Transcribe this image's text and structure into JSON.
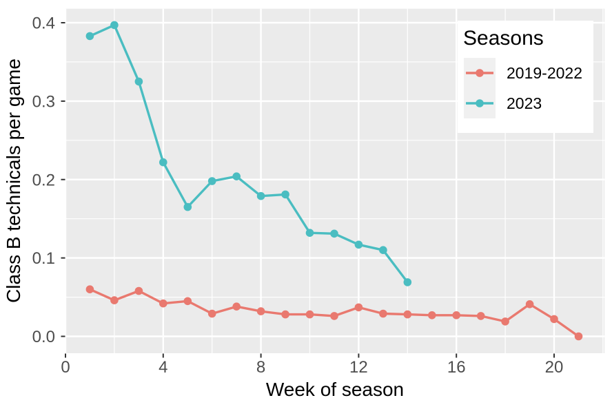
{
  "figure": {
    "background": "#FFFFFF",
    "panel_background": "#EBEBEB",
    "grid_color": "#FFFFFF",
    "tick_mark_color": "#333333",
    "tick_label_color": "#4D4D4D",
    "axis_title_color": "#000000",
    "legend_key_background": "#F0F0F0"
  },
  "chart_data": {
    "type": "line",
    "title": "",
    "xlabel": "Week of season",
    "ylabel": "Class B technicals per game",
    "legend_title": "Seasons",
    "legend_position": "top-right",
    "grid": true,
    "xlim": [
      0,
      22.1
    ],
    "ylim": [
      -0.021,
      0.418
    ],
    "x_ticks": [
      0,
      4,
      8,
      12,
      16,
      20
    ],
    "x_minor_ticks": [
      2,
      6,
      10,
      14,
      18,
      22
    ],
    "y_ticks": [
      "0.0",
      "0.1",
      "0.2",
      "0.3",
      "0.4"
    ],
    "y_tick_values": [
      0.0,
      0.1,
      0.2,
      0.3,
      0.4
    ],
    "y_minor_ticks": [
      0.05,
      0.15,
      0.25,
      0.35
    ],
    "series": [
      {
        "name": "2019-2022",
        "color": "#E9796F",
        "x": [
          1,
          2,
          3,
          4,
          5,
          6,
          7,
          8,
          9,
          10,
          11,
          12,
          13,
          14,
          15,
          16,
          17,
          18,
          19,
          20,
          21
        ],
        "values": [
          0.06,
          0.046,
          0.058,
          0.042,
          0.045,
          0.029,
          0.038,
          0.032,
          0.028,
          0.028,
          0.026,
          0.037,
          0.029,
          0.028,
          0.027,
          0.027,
          0.026,
          0.019,
          0.041,
          0.022,
          0.0
        ]
      },
      {
        "name": "2023",
        "color": "#4ABDC1",
        "x": [
          1,
          2,
          3,
          4,
          5,
          6,
          7,
          8,
          9,
          10,
          11,
          12,
          13,
          14
        ],
        "values": [
          0.383,
          0.397,
          0.325,
          0.222,
          0.165,
          0.198,
          0.204,
          0.179,
          0.181,
          0.132,
          0.131,
          0.117,
          0.11,
          0.069
        ]
      }
    ]
  },
  "legend": {
    "title": "Seasons",
    "items": [
      {
        "label": "2019-2022",
        "color": "#E9796F"
      },
      {
        "label": "2023",
        "color": "#4ABDC1"
      }
    ]
  }
}
